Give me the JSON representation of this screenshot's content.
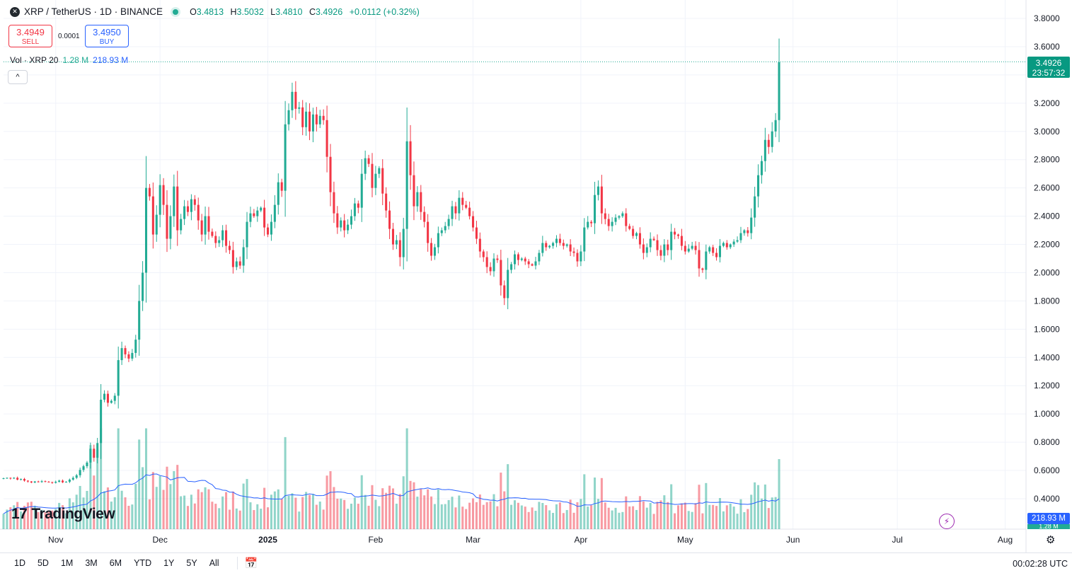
{
  "header": {
    "symbol_logo": "✕",
    "title": "XRP / TetherUS · 1D · BINANCE",
    "ohlc": {
      "o_label": "O",
      "o": "3.4813",
      "h_label": "H",
      "h": "3.5032",
      "l_label": "L",
      "l": "3.4810",
      "c_label": "C",
      "c": "3.4926",
      "change": "+0.0112 (+0.32%)"
    }
  },
  "trade": {
    "sell_price": "3.4949",
    "sell_label": "SELL",
    "spread": "0.0001",
    "buy_price": "3.4950",
    "buy_label": "BUY"
  },
  "volume_legend": {
    "label": "Vol · XRP 20",
    "value": "1.28 M",
    "ma_value": "218.93 M"
  },
  "collapse_symbol": "^",
  "price_tag": {
    "price": "3.4926",
    "countdown": "23:57:32"
  },
  "volume_tag": {
    "ma": "218.93 M",
    "vol": "1.28 M"
  },
  "logo": {
    "mark": "17",
    "text": "TradingView"
  },
  "periods": [
    "1D",
    "5D",
    "1M",
    "3M",
    "6M",
    "YTD",
    "1Y",
    "5Y",
    "All"
  ],
  "clock": "00:02:28 UTC",
  "colors": {
    "up": "#22ab94",
    "down": "#f23645",
    "ma": "#2962ff",
    "grid": "#f0f3fa"
  },
  "chart_data": {
    "type": "candlestick",
    "title": "XRP / TetherUS · 1D · BINANCE",
    "y_axis": {
      "min": 0.3,
      "max": 3.9,
      "ticks": [
        "3.8000",
        "3.6000",
        "3.4000",
        "3.2000",
        "3.0000",
        "2.8000",
        "2.6000",
        "2.4000",
        "2.2000",
        "2.0000",
        "1.8000",
        "1.6000",
        "1.4000",
        "1.2000",
        "1.0000",
        "0.8000",
        "0.6000",
        "0.4000"
      ],
      "tick_values": [
        3.8,
        3.6,
        3.4,
        3.2,
        3.0,
        2.8,
        2.6,
        2.4,
        2.2,
        2.0,
        1.8,
        1.6,
        1.4,
        1.2,
        1.0,
        0.8,
        0.6,
        0.4
      ]
    },
    "x_axis": {
      "start_date": "2024-10-17",
      "end_date": "2025-08-07",
      "labels": [
        {
          "text": "Nov",
          "date": "2024-11-01"
        },
        {
          "text": "Dec",
          "date": "2024-12-01"
        },
        {
          "text": "2025",
          "date": "2025-01-01",
          "bold": true
        },
        {
          "text": "Feb",
          "date": "2025-02-01"
        },
        {
          "text": "Mar",
          "date": "2025-03-01"
        },
        {
          "text": "Apr",
          "date": "2025-04-01"
        },
        {
          "text": "May",
          "date": "2025-05-01"
        },
        {
          "text": "Jun",
          "date": "2025-06-01"
        },
        {
          "text": "Jul",
          "date": "2025-07-01"
        },
        {
          "text": "Aug",
          "date": "2025-08-01"
        }
      ]
    },
    "series": [
      {
        "name": "XRP/USDT daily close",
        "start_date": "2024-10-17",
        "closes": [
          0.545,
          0.548,
          0.543,
          0.548,
          0.535,
          0.54,
          0.528,
          0.522,
          0.515,
          0.522,
          0.518,
          0.524,
          0.52,
          0.518,
          0.513,
          0.52,
          0.528,
          0.516,
          0.52,
          0.535,
          0.548,
          0.566,
          0.604,
          0.63,
          0.656,
          0.754,
          0.69,
          0.794,
          1.101,
          1.143,
          1.079,
          1.093,
          1.129,
          1.381,
          1.466,
          1.422,
          1.392,
          1.432,
          1.526,
          1.8,
          2.0,
          2.6,
          2.54,
          2.27,
          2.41,
          2.62,
          2.48,
          2.24,
          2.4,
          2.61,
          2.3,
          2.38,
          2.47,
          2.43,
          2.52,
          2.48,
          2.37,
          2.27,
          2.4,
          2.29,
          2.26,
          2.21,
          2.23,
          2.3,
          2.19,
          2.16,
          2.04,
          2.08,
          2.05,
          2.18,
          2.36,
          2.42,
          2.4,
          2.44,
          2.46,
          2.32,
          2.27,
          2.36,
          2.48,
          2.64,
          2.58,
          3.05,
          3.15,
          3.28,
          3.16,
          3.17,
          3.03,
          3.14,
          3.0,
          3.12,
          3.05,
          3.11,
          3.08,
          2.82,
          2.57,
          2.42,
          2.32,
          2.37,
          2.3,
          2.34,
          2.4,
          2.49,
          2.46,
          2.7,
          2.81,
          2.77,
          2.6,
          2.7,
          2.74,
          2.56,
          2.44,
          2.31,
          2.2,
          2.23,
          2.11,
          2.31,
          2.93,
          2.69,
          2.47,
          2.57,
          2.43,
          2.36,
          2.21,
          2.12,
          2.18,
          2.28,
          2.3,
          2.33,
          2.38,
          2.47,
          2.42,
          2.53,
          2.48,
          2.46,
          2.4,
          2.32,
          2.24,
          2.15,
          2.11,
          2.04,
          2.01,
          2.1,
          2.09,
          1.91,
          1.82,
          2.02,
          2.06,
          2.13,
          2.09,
          2.1,
          2.08,
          2.06,
          2.05,
          2.08,
          2.14,
          2.21,
          2.18,
          2.19,
          2.21,
          2.24,
          2.21,
          2.19,
          2.2,
          2.15,
          2.14,
          2.08,
          2.15,
          2.32,
          2.36,
          2.35,
          2.55,
          2.61,
          2.42,
          2.38,
          2.33,
          2.36,
          2.39,
          2.4,
          2.42,
          2.33,
          2.31,
          2.26,
          2.28,
          2.2,
          2.14,
          2.18,
          2.24,
          2.23,
          2.16,
          2.12,
          2.2,
          2.16,
          2.29,
          2.27,
          2.26,
          2.19,
          2.15,
          2.17,
          2.19,
          2.16,
          2.03,
          2.02,
          2.15,
          2.18,
          2.14,
          2.11,
          2.19,
          2.21,
          2.18,
          2.2,
          2.22,
          2.23,
          2.28,
          2.3,
          2.28,
          2.39,
          2.54,
          2.69,
          2.79,
          2.94,
          2.89,
          3.0,
          3.08,
          3.49
        ]
      }
    ],
    "volume": {
      "label": "Vol · XRP 20",
      "last_value": "1.28M",
      "ma_length": 20,
      "ma_last": "218.93M"
    },
    "last_price": 3.4926
  }
}
